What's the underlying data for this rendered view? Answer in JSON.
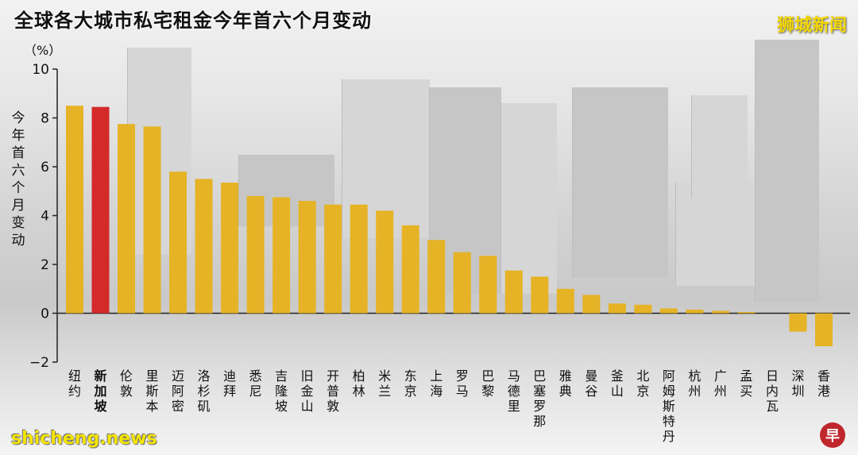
{
  "header": {
    "title": "全球各大城市私宅租金今年首六个月变动",
    "brand": "狮城新闻"
  },
  "watermark": "shicheng.news",
  "logo_glyph": "早",
  "chart_data": {
    "type": "bar",
    "title": "全球各大城市私宅租金今年首六个月变动",
    "unit_label": "（%）",
    "ylabel": "今年首六个月变动",
    "ylim": [
      -2,
      10
    ],
    "yticks": [
      -2,
      0,
      2,
      4,
      6,
      8,
      10
    ],
    "categories": [
      "纽约",
      "新加坡",
      "伦敦",
      "里斯本",
      "迈阿密",
      "洛杉矶",
      "迪拜",
      "悉尼",
      "吉隆坡",
      "旧金山",
      "开普敦",
      "柏林",
      "米兰",
      "东京",
      "上海",
      "罗马",
      "巴黎",
      "马德里",
      "巴塞罗那",
      "雅典",
      "曼谷",
      "釜山",
      "北京",
      "阿姆斯特丹",
      "杭州",
      "广州",
      "孟买",
      "日内瓦",
      "深圳",
      "香港"
    ],
    "values": [
      8.5,
      8.45,
      7.75,
      7.65,
      5.8,
      5.5,
      5.35,
      4.8,
      4.75,
      4.6,
      4.45,
      4.45,
      4.2,
      3.6,
      3.0,
      2.5,
      2.35,
      1.75,
      1.5,
      1.0,
      0.75,
      0.4,
      0.35,
      0.2,
      0.15,
      0.1,
      0.05,
      0.0,
      -0.75,
      -1.35
    ],
    "highlight_category": "新加坡",
    "colors": {
      "bar": "#e5b325",
      "highlight": "#d42a2a",
      "axis": "#222222"
    },
    "grid": false,
    "legend": "none"
  }
}
